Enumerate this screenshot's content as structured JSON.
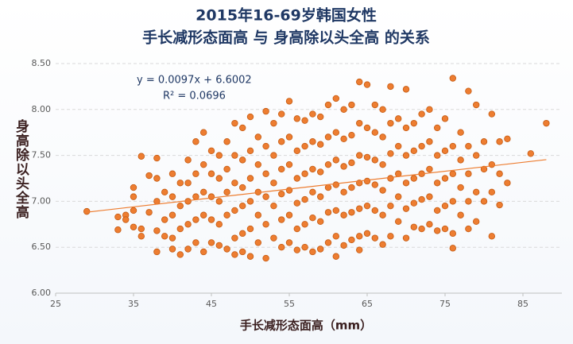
{
  "chart_data": {
    "type": "scatter",
    "title": "2015年16-69岁韩国女性",
    "subtitle": "手长减形态面高 与 身高除以头全高 的关系",
    "x_label": "手长减形态面高（mm）",
    "y_label": "身高除以头全高",
    "color": "#ed7d31",
    "xlim": [
      25,
      90
    ],
    "xticks": [
      25,
      35,
      45,
      55,
      65,
      75,
      85
    ],
    "ylim": [
      6,
      8.5
    ],
    "yticks": [
      {
        "value": 6,
        "label": "6.00"
      },
      {
        "value": 6.5,
        "label": "6.50"
      },
      {
        "value": 7,
        "label": "7.00"
      },
      {
        "value": 7.5,
        "label": "7.50"
      },
      {
        "value": 8,
        "label": "8.00"
      },
      {
        "value": 8.5,
        "label": "8.50"
      }
    ],
    "grid": true,
    "trendline": {
      "equation": "y = 0.0097x + 6.6002",
      "r2": "R² = 0.0696",
      "slope": 0.0097,
      "intercept": 6.6002,
      "x_range": [
        29,
        88
      ]
    },
    "x": [
      29,
      33,
      33,
      34,
      34,
      35,
      35,
      35,
      35,
      36,
      36,
      36,
      37,
      37,
      38,
      38,
      38,
      38,
      38,
      39,
      39,
      39,
      40,
      40,
      40,
      40,
      40,
      41,
      41,
      41,
      41,
      42,
      42,
      42,
      42,
      42,
      43,
      43,
      43,
      43,
      43,
      44,
      44,
      44,
      44,
      44,
      45,
      45,
      45,
      45,
      45,
      46,
      46,
      46,
      46,
      46,
      47,
      47,
      47,
      47,
      47,
      48,
      48,
      48,
      48,
      48,
      48,
      49,
      49,
      49,
      49,
      49,
      49,
      50,
      50,
      50,
      50,
      50,
      50,
      51,
      51,
      51,
      51,
      51,
      52,
      52,
      52,
      52,
      52,
      52,
      53,
      53,
      53,
      53,
      53,
      54,
      54,
      54,
      54,
      54,
      54,
      55,
      55,
      55,
      55,
      55,
      55,
      56,
      56,
      56,
      56,
      56,
      56,
      57,
      57,
      57,
      57,
      57,
      57,
      58,
      58,
      58,
      58,
      58,
      58,
      59,
      59,
      59,
      59,
      59,
      59,
      60,
      60,
      60,
      60,
      60,
      60,
      61,
      61,
      61,
      61,
      61,
      61,
      61,
      62,
      62,
      62,
      62,
      62,
      62,
      63,
      63,
      63,
      63,
      63,
      63,
      64,
      64,
      64,
      64,
      64,
      64,
      64,
      65,
      65,
      65,
      65,
      65,
      65,
      66,
      66,
      66,
      66,
      66,
      66,
      67,
      67,
      67,
      67,
      67,
      67,
      68,
      68,
      68,
      68,
      68,
      68,
      69,
      69,
      69,
      69,
      69,
      70,
      70,
      70,
      70,
      70,
      70,
      71,
      71,
      71,
      71,
      71,
      72,
      72,
      72,
      72,
      72,
      73,
      73,
      73,
      73,
      73,
      74,
      74,
      74,
      74,
      74,
      75,
      75,
      75,
      75,
      75,
      76,
      76,
      76,
      76,
      76,
      76,
      77,
      77,
      77,
      77,
      78,
      78,
      78,
      78,
      78,
      79,
      79,
      79,
      79,
      80,
      80,
      80,
      81,
      81,
      81,
      81,
      82,
      82,
      82,
      83,
      83,
      86,
      88
    ],
    "values": [
      6.89,
      6.83,
      6.69,
      6.85,
      6.8,
      7.15,
      7.05,
      6.9,
      6.72,
      7.49,
      6.7,
      6.62,
      7.28,
      6.88,
      7.47,
      7.25,
      7.0,
      6.68,
      6.45,
      7.1,
      6.8,
      6.62,
      7.3,
      7.05,
      6.85,
      6.6,
      6.48,
      7.2,
      6.95,
      6.7,
      6.42,
      7.45,
      7.2,
      7.0,
      6.75,
      6.48,
      7.65,
      7.3,
      7.05,
      6.8,
      6.55,
      7.75,
      7.4,
      7.1,
      6.85,
      6.45,
      7.55,
      7.3,
      7.05,
      6.8,
      6.55,
      7.5,
      7.25,
      7.0,
      6.75,
      6.52,
      7.65,
      7.35,
      7.1,
      6.85,
      6.48,
      7.85,
      7.5,
      7.2,
      6.9,
      6.6,
      6.42,
      7.8,
      7.45,
      7.15,
      6.95,
      6.65,
      6.45,
      7.92,
      7.55,
      7.25,
      7.0,
      6.7,
      6.4,
      7.7,
      7.4,
      7.1,
      6.85,
      6.55,
      7.98,
      7.6,
      7.3,
      7.05,
      6.75,
      6.38,
      7.85,
      7.5,
      7.2,
      6.95,
      6.6,
      7.95,
      7.65,
      7.35,
      7.08,
      6.8,
      6.5,
      8.09,
      7.7,
      7.4,
      7.12,
      6.85,
      6.55,
      7.9,
      7.55,
      7.25,
      6.98,
      6.7,
      6.47,
      7.88,
      7.6,
      7.3,
      7.02,
      6.75,
      6.5,
      7.95,
      7.65,
      7.35,
      7.1,
      6.82,
      6.45,
      7.92,
      7.62,
      7.32,
      7.05,
      6.78,
      6.48,
      8.05,
      7.7,
      7.4,
      7.15,
      6.88,
      6.55,
      8.12,
      7.75,
      7.45,
      7.18,
      6.9,
      6.62,
      6.4,
      8.0,
      7.68,
      7.38,
      7.1,
      6.85,
      6.52,
      8.05,
      7.72,
      7.42,
      7.15,
      6.88,
      6.58,
      8.3,
      7.85,
      7.5,
      7.2,
      6.92,
      6.62,
      6.47,
      8.27,
      7.8,
      7.48,
      7.22,
      6.95,
      6.65,
      8.05,
      7.75,
      7.45,
      7.18,
      6.9,
      6.6,
      8.0,
      7.7,
      7.4,
      7.12,
      6.85,
      6.53,
      8.25,
      7.85,
      7.52,
      7.25,
      6.95,
      6.62,
      7.9,
      7.6,
      7.3,
      7.05,
      6.78,
      8.22,
      7.8,
      7.5,
      7.2,
      6.92,
      6.6,
      7.85,
      7.55,
      7.25,
      6.98,
      6.72,
      7.95,
      7.6,
      7.3,
      7.02,
      6.7,
      8.0,
      7.65,
      7.35,
      7.05,
      6.75,
      7.8,
      7.5,
      7.2,
      6.9,
      6.68,
      7.9,
      7.55,
      7.25,
      6.95,
      6.7,
      8.34,
      7.6,
      7.3,
      7.0,
      6.65,
      6.49,
      7.75,
      7.45,
      7.15,
      6.85,
      8.2,
      7.6,
      7.3,
      7.0,
      6.7,
      8.05,
      7.5,
      7.1,
      6.78,
      7.65,
      7.35,
      7.0,
      7.95,
      7.4,
      7.1,
      6.62,
      7.65,
      7.3,
      6.96,
      7.68,
      7.2,
      7.52,
      7.85
    ]
  }
}
